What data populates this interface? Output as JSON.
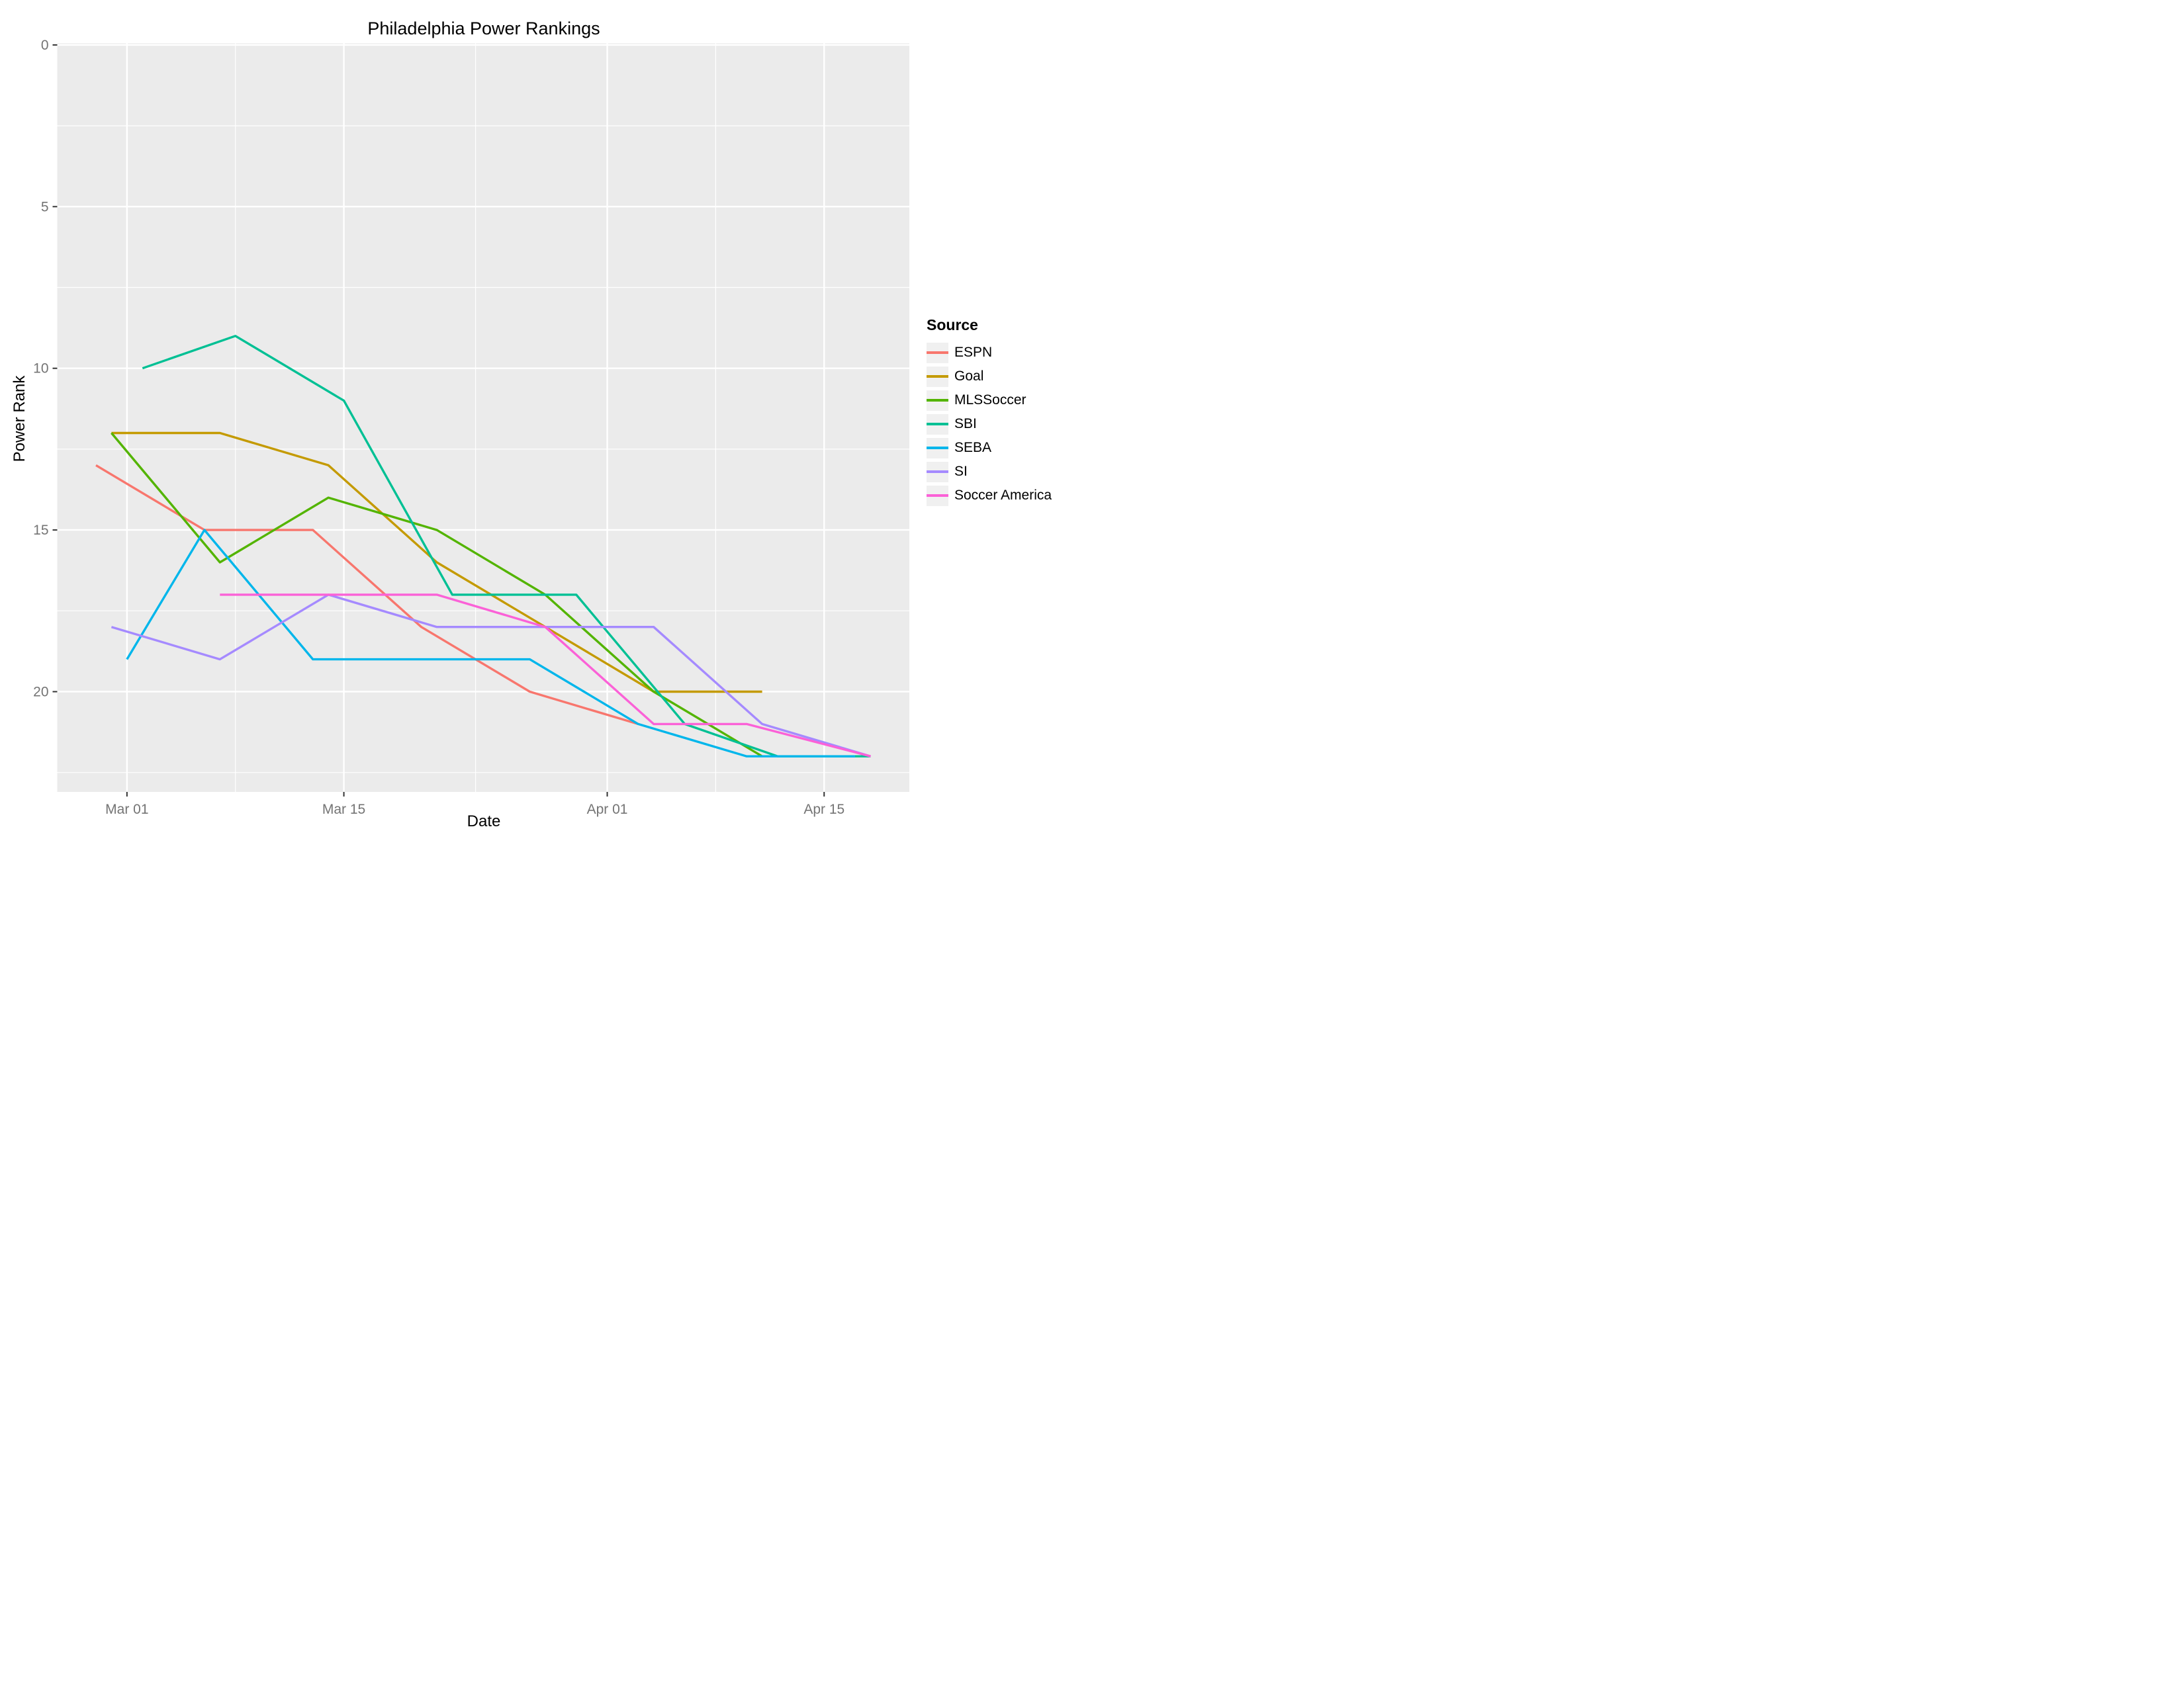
{
  "chart_data": {
    "type": "line",
    "title": "Philadelphia Power Rankings",
    "xlabel": "Date",
    "ylabel": "Power Rank",
    "legend_title": "Source",
    "legend_position": "right",
    "y_reversed": true,
    "ylim": [
      -0.05,
      23.1
    ],
    "xlim_days": [
      -4.5,
      50.5
    ],
    "x_unit": "days since Mar 01",
    "grid": "white major and minor gridlines on grey panel",
    "y_ticks": [
      0,
      5,
      10,
      15,
      20
    ],
    "y_minor": [
      2.5,
      7.5,
      12.5,
      17.5,
      22.5
    ],
    "x_ticks": [
      {
        "label": "Mar 01",
        "day": 0
      },
      {
        "label": "Mar 15",
        "day": 14
      },
      {
        "label": "Apr 01",
        "day": 31
      },
      {
        "label": "Apr 15",
        "day": 45
      }
    ],
    "x_minor_days": [
      7,
      22.5,
      38
    ],
    "series": [
      {
        "name": "ESPN",
        "color": "#F8766D",
        "points": [
          {
            "date": "Feb 27",
            "day": -2,
            "rank": 13
          },
          {
            "date": "Mar 06",
            "day": 5,
            "rank": 15
          },
          {
            "date": "Mar 13",
            "day": 12,
            "rank": 15
          },
          {
            "date": "Mar 20",
            "day": 19,
            "rank": 18
          },
          {
            "date": "Mar 27",
            "day": 26,
            "rank": 20
          },
          {
            "date": "Apr 03",
            "day": 33,
            "rank": 21
          }
        ]
      },
      {
        "name": "Goal",
        "color": "#C49A00",
        "points": [
          {
            "date": "Feb 28",
            "day": -1,
            "rank": 12
          },
          {
            "date": "Mar 07",
            "day": 6,
            "rank": 12
          },
          {
            "date": "Mar 14",
            "day": 13,
            "rank": 13
          },
          {
            "date": "Mar 21",
            "day": 20,
            "rank": 16
          },
          {
            "date": "Mar 28",
            "day": 27,
            "rank": 18
          },
          {
            "date": "Apr 04",
            "day": 34,
            "rank": 20
          },
          {
            "date": "Apr 11",
            "day": 41,
            "rank": 20
          }
        ]
      },
      {
        "name": "MLSSoccer",
        "color": "#53B400",
        "points": [
          {
            "date": "Feb 28",
            "day": -1,
            "rank": 12
          },
          {
            "date": "Mar 07",
            "day": 6,
            "rank": 16
          },
          {
            "date": "Mar 14",
            "day": 13,
            "rank": 14
          },
          {
            "date": "Mar 21",
            "day": 20,
            "rank": 15
          },
          {
            "date": "Mar 28",
            "day": 27,
            "rank": 17
          },
          {
            "date": "Apr 04",
            "day": 34,
            "rank": 20
          },
          {
            "date": "Apr 11",
            "day": 41,
            "rank": 22
          }
        ]
      },
      {
        "name": "SBI",
        "color": "#00C094",
        "points": [
          {
            "date": "Mar 02",
            "day": 1,
            "rank": 10
          },
          {
            "date": "Mar 08",
            "day": 7,
            "rank": 9
          },
          {
            "date": "Mar 15",
            "day": 14,
            "rank": 11
          },
          {
            "date": "Mar 22",
            "day": 21,
            "rank": 17
          },
          {
            "date": "Mar 30",
            "day": 29,
            "rank": 17
          },
          {
            "date": "Apr 06",
            "day": 36,
            "rank": 21
          },
          {
            "date": "Apr 12",
            "day": 42,
            "rank": 22
          },
          {
            "date": "Apr 18",
            "day": 48,
            "rank": 22
          }
        ]
      },
      {
        "name": "SEBA",
        "color": "#00B6EB",
        "points": [
          {
            "date": "Mar 01",
            "day": 0,
            "rank": 19
          },
          {
            "date": "Mar 06",
            "day": 5,
            "rank": 15
          },
          {
            "date": "Mar 13",
            "day": 12,
            "rank": 19
          },
          {
            "date": "Mar 20",
            "day": 19,
            "rank": 19
          },
          {
            "date": "Mar 27",
            "day": 26,
            "rank": 19
          },
          {
            "date": "Apr 03",
            "day": 33,
            "rank": 21
          },
          {
            "date": "Apr 10",
            "day": 40,
            "rank": 22
          },
          {
            "date": "Apr 17",
            "day": 47,
            "rank": 22
          }
        ]
      },
      {
        "name": "SI",
        "color": "#A58AFF",
        "points": [
          {
            "date": "Feb 28",
            "day": -1,
            "rank": 18
          },
          {
            "date": "Mar 07",
            "day": 6,
            "rank": 19
          },
          {
            "date": "Mar 14",
            "day": 13,
            "rank": 17
          },
          {
            "date": "Mar 21",
            "day": 20,
            "rank": 18
          },
          {
            "date": "Mar 28",
            "day": 27,
            "rank": 18
          },
          {
            "date": "Apr 04",
            "day": 34,
            "rank": 18
          },
          {
            "date": "Apr 11",
            "day": 41,
            "rank": 21
          },
          {
            "date": "Apr 18",
            "day": 48,
            "rank": 22
          }
        ]
      },
      {
        "name": "Soccer America",
        "color": "#FB61D7",
        "points": [
          {
            "date": "Mar 07",
            "day": 6,
            "rank": 17
          },
          {
            "date": "Mar 14",
            "day": 13,
            "rank": 17
          },
          {
            "date": "Mar 21",
            "day": 20,
            "rank": 17
          },
          {
            "date": "Mar 28",
            "day": 27,
            "rank": 18
          },
          {
            "date": "Apr 04",
            "day": 34,
            "rank": 21
          },
          {
            "date": "Apr 10",
            "day": 40,
            "rank": 21
          },
          {
            "date": "Apr 18",
            "day": 48,
            "rank": 22
          }
        ]
      }
    ]
  },
  "colors": {
    "panel_background": "#EBEBEB",
    "gridline": "#FFFFFF",
    "tick_text": "#747474",
    "tick_mark": "#333333",
    "text": "#000000",
    "legend_key_background": "#F0F0F0",
    "page_background": "#FFFFFF"
  }
}
